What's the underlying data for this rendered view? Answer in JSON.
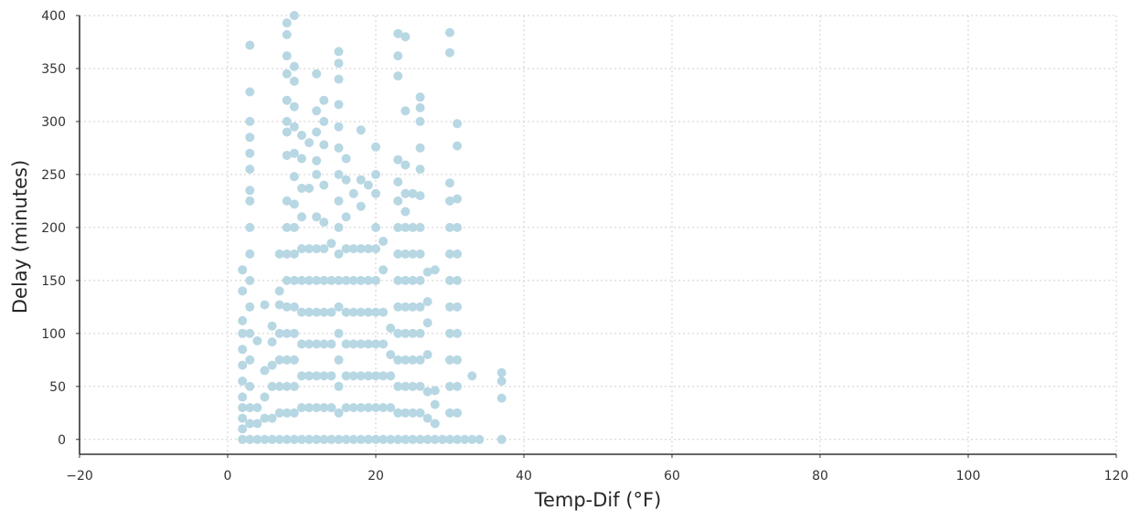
{
  "chart_data": {
    "type": "scatter",
    "title": "",
    "xlabel": "Temp-Dif (°F)",
    "ylabel": "Delay (minutes)",
    "xlim": [
      -20,
      120
    ],
    "ylim": [
      -14,
      400
    ],
    "xticks": [
      -20,
      0,
      20,
      40,
      60,
      80,
      100,
      120
    ],
    "xtick_labels": [
      "−20",
      "0",
      "20",
      "40",
      "60",
      "80",
      "100",
      "120"
    ],
    "yticks": [
      0,
      50,
      100,
      150,
      200,
      250,
      300,
      350,
      400
    ],
    "ytick_labels": [
      "0",
      "50",
      "100",
      "150",
      "200",
      "250",
      "300",
      "350",
      "400"
    ],
    "grid": true,
    "spines": "left-bottom",
    "marker_color": "#b7d7e3",
    "series": [
      {
        "values_note_skip": false,
        "points": [
          [
            2,
            0
          ],
          [
            2,
            10
          ],
          [
            2,
            20
          ],
          [
            2,
            30
          ],
          [
            2,
            40
          ],
          [
            2,
            55
          ],
          [
            2,
            70
          ],
          [
            2,
            85
          ],
          [
            2,
            100
          ],
          [
            2,
            112
          ],
          [
            2,
            140
          ],
          [
            2,
            160
          ],
          [
            3,
            0
          ],
          [
            3,
            15
          ],
          [
            3,
            30
          ],
          [
            3,
            50
          ],
          [
            3,
            75
          ],
          [
            3,
            100
          ],
          [
            3,
            125
          ],
          [
            3,
            150
          ],
          [
            3,
            175
          ],
          [
            3,
            200
          ],
          [
            3,
            225
          ],
          [
            3,
            235
          ],
          [
            3,
            255
          ],
          [
            3,
            270
          ],
          [
            3,
            285
          ],
          [
            3,
            300
          ],
          [
            3,
            328
          ],
          [
            3,
            372
          ],
          [
            4,
            0
          ],
          [
            4,
            15
          ],
          [
            4,
            30
          ],
          [
            4,
            93
          ],
          [
            5,
            0
          ],
          [
            5,
            20
          ],
          [
            5,
            40
          ],
          [
            5,
            65
          ],
          [
            5,
            127
          ],
          [
            6,
            0
          ],
          [
            6,
            20
          ],
          [
            6,
            50
          ],
          [
            6,
            70
          ],
          [
            6,
            92
          ],
          [
            6,
            107
          ],
          [
            7,
            0
          ],
          [
            7,
            25
          ],
          [
            7,
            50
          ],
          [
            7,
            75
          ],
          [
            7,
            100
          ],
          [
            7,
            127
          ],
          [
            7,
            140
          ],
          [
            7,
            175
          ],
          [
            8,
            0
          ],
          [
            8,
            25
          ],
          [
            8,
            50
          ],
          [
            8,
            75
          ],
          [
            8,
            100
          ],
          [
            8,
            125
          ],
          [
            8,
            150
          ],
          [
            8,
            175
          ],
          [
            8,
            200
          ],
          [
            8,
            225
          ],
          [
            8,
            268
          ],
          [
            8,
            290
          ],
          [
            8,
            300
          ],
          [
            8,
            320
          ],
          [
            8,
            345
          ],
          [
            8,
            362
          ],
          [
            8,
            382
          ],
          [
            8,
            393
          ],
          [
            9,
            0
          ],
          [
            9,
            25
          ],
          [
            9,
            50
          ],
          [
            9,
            75
          ],
          [
            9,
            100
          ],
          [
            9,
            125
          ],
          [
            9,
            150
          ],
          [
            9,
            175
          ],
          [
            9,
            200
          ],
          [
            9,
            222
          ],
          [
            9,
            248
          ],
          [
            9,
            270
          ],
          [
            9,
            295
          ],
          [
            9,
            314
          ],
          [
            9,
            338
          ],
          [
            9,
            352
          ],
          [
            9,
            400
          ],
          [
            10,
            0
          ],
          [
            10,
            30
          ],
          [
            10,
            60
          ],
          [
            10,
            90
          ],
          [
            10,
            120
          ],
          [
            10,
            150
          ],
          [
            10,
            180
          ],
          [
            10,
            210
          ],
          [
            10,
            237
          ],
          [
            10,
            265
          ],
          [
            10,
            287
          ],
          [
            11,
            0
          ],
          [
            11,
            30
          ],
          [
            11,
            60
          ],
          [
            11,
            90
          ],
          [
            11,
            120
          ],
          [
            11,
            150
          ],
          [
            11,
            180
          ],
          [
            11,
            237
          ],
          [
            11,
            280
          ],
          [
            12,
            0
          ],
          [
            12,
            30
          ],
          [
            12,
            60
          ],
          [
            12,
            90
          ],
          [
            12,
            120
          ],
          [
            12,
            150
          ],
          [
            12,
            180
          ],
          [
            12,
            210
          ],
          [
            12,
            250
          ],
          [
            12,
            263
          ],
          [
            12,
            290
          ],
          [
            12,
            310
          ],
          [
            12,
            345
          ],
          [
            13,
            0
          ],
          [
            13,
            30
          ],
          [
            13,
            60
          ],
          [
            13,
            90
          ],
          [
            13,
            120
          ],
          [
            13,
            150
          ],
          [
            13,
            180
          ],
          [
            13,
            205
          ],
          [
            13,
            240
          ],
          [
            13,
            278
          ],
          [
            13,
            300
          ],
          [
            13,
            320
          ],
          [
            14,
            0
          ],
          [
            14,
            30
          ],
          [
            14,
            60
          ],
          [
            14,
            90
          ],
          [
            14,
            120
          ],
          [
            14,
            150
          ],
          [
            14,
            185
          ],
          [
            15,
            0
          ],
          [
            15,
            25
          ],
          [
            15,
            50
          ],
          [
            15,
            75
          ],
          [
            15,
            100
          ],
          [
            15,
            125
          ],
          [
            15,
            150
          ],
          [
            15,
            175
          ],
          [
            15,
            200
          ],
          [
            15,
            225
          ],
          [
            15,
            250
          ],
          [
            15,
            275
          ],
          [
            15,
            295
          ],
          [
            15,
            316
          ],
          [
            15,
            340
          ],
          [
            15,
            355
          ],
          [
            15,
            366
          ],
          [
            16,
            0
          ],
          [
            16,
            30
          ],
          [
            16,
            60
          ],
          [
            16,
            90
          ],
          [
            16,
            120
          ],
          [
            16,
            150
          ],
          [
            16,
            180
          ],
          [
            16,
            210
          ],
          [
            16,
            245
          ],
          [
            16,
            265
          ],
          [
            17,
            0
          ],
          [
            17,
            30
          ],
          [
            17,
            60
          ],
          [
            17,
            90
          ],
          [
            17,
            120
          ],
          [
            17,
            150
          ],
          [
            17,
            180
          ],
          [
            17,
            232
          ],
          [
            18,
            0
          ],
          [
            18,
            30
          ],
          [
            18,
            60
          ],
          [
            18,
            90
          ],
          [
            18,
            120
          ],
          [
            18,
            150
          ],
          [
            18,
            180
          ],
          [
            18,
            220
          ],
          [
            18,
            245
          ],
          [
            18,
            292
          ],
          [
            19,
            0
          ],
          [
            19,
            30
          ],
          [
            19,
            60
          ],
          [
            19,
            90
          ],
          [
            19,
            120
          ],
          [
            19,
            150
          ],
          [
            19,
            180
          ],
          [
            19,
            240
          ],
          [
            20,
            0
          ],
          [
            20,
            30
          ],
          [
            20,
            60
          ],
          [
            20,
            90
          ],
          [
            20,
            120
          ],
          [
            20,
            150
          ],
          [
            20,
            180
          ],
          [
            20,
            200
          ],
          [
            20,
            232
          ],
          [
            20,
            250
          ],
          [
            20,
            276
          ],
          [
            21,
            0
          ],
          [
            21,
            30
          ],
          [
            21,
            60
          ],
          [
            21,
            90
          ],
          [
            21,
            120
          ],
          [
            21,
            160
          ],
          [
            21,
            187
          ],
          [
            22,
            0
          ],
          [
            22,
            30
          ],
          [
            22,
            60
          ],
          [
            22,
            80
          ],
          [
            22,
            105
          ],
          [
            23,
            0
          ],
          [
            23,
            25
          ],
          [
            23,
            50
          ],
          [
            23,
            75
          ],
          [
            23,
            100
          ],
          [
            23,
            125
          ],
          [
            23,
            150
          ],
          [
            23,
            175
          ],
          [
            23,
            200
          ],
          [
            23,
            225
          ],
          [
            23,
            243
          ],
          [
            23,
            264
          ],
          [
            23,
            343
          ],
          [
            23,
            362
          ],
          [
            23,
            383
          ],
          [
            24,
            0
          ],
          [
            24,
            25
          ],
          [
            24,
            50
          ],
          [
            24,
            75
          ],
          [
            24,
            100
          ],
          [
            24,
            125
          ],
          [
            24,
            150
          ],
          [
            24,
            175
          ],
          [
            24,
            200
          ],
          [
            24,
            215
          ],
          [
            24,
            232
          ],
          [
            24,
            259
          ],
          [
            24,
            310
          ],
          [
            24,
            380
          ],
          [
            25,
            0
          ],
          [
            25,
            25
          ],
          [
            25,
            50
          ],
          [
            25,
            75
          ],
          [
            25,
            100
          ],
          [
            25,
            125
          ],
          [
            25,
            150
          ],
          [
            25,
            175
          ],
          [
            25,
            200
          ],
          [
            25,
            232
          ],
          [
            26,
            0
          ],
          [
            26,
            25
          ],
          [
            26,
            50
          ],
          [
            26,
            75
          ],
          [
            26,
            100
          ],
          [
            26,
            125
          ],
          [
            26,
            150
          ],
          [
            26,
            175
          ],
          [
            26,
            200
          ],
          [
            26,
            230
          ],
          [
            26,
            255
          ],
          [
            26,
            275
          ],
          [
            26,
            300
          ],
          [
            26,
            313
          ],
          [
            26,
            323
          ],
          [
            27,
            0
          ],
          [
            27,
            20
          ],
          [
            27,
            45
          ],
          [
            27,
            80
          ],
          [
            27,
            110
          ],
          [
            27,
            130
          ],
          [
            27,
            158
          ],
          [
            28,
            0
          ],
          [
            28,
            15
          ],
          [
            28,
            33
          ],
          [
            28,
            46
          ],
          [
            28,
            160
          ],
          [
            29,
            0
          ],
          [
            30,
            0
          ],
          [
            30,
            25
          ],
          [
            30,
            50
          ],
          [
            30,
            75
          ],
          [
            30,
            100
          ],
          [
            30,
            125
          ],
          [
            30,
            150
          ],
          [
            30,
            175
          ],
          [
            30,
            200
          ],
          [
            30,
            225
          ],
          [
            30,
            242
          ],
          [
            30,
            365
          ],
          [
            30,
            384
          ],
          [
            31,
            0
          ],
          [
            31,
            25
          ],
          [
            31,
            50
          ],
          [
            31,
            75
          ],
          [
            31,
            100
          ],
          [
            31,
            125
          ],
          [
            31,
            150
          ],
          [
            31,
            175
          ],
          [
            31,
            200
          ],
          [
            31,
            227
          ],
          [
            31,
            277
          ],
          [
            31,
            298
          ],
          [
            32,
            0
          ],
          [
            33,
            0
          ],
          [
            33,
            60
          ],
          [
            34,
            0
          ],
          [
            37,
            0
          ],
          [
            37,
            39
          ],
          [
            37,
            55
          ],
          [
            37,
            63
          ]
        ]
      }
    ]
  }
}
